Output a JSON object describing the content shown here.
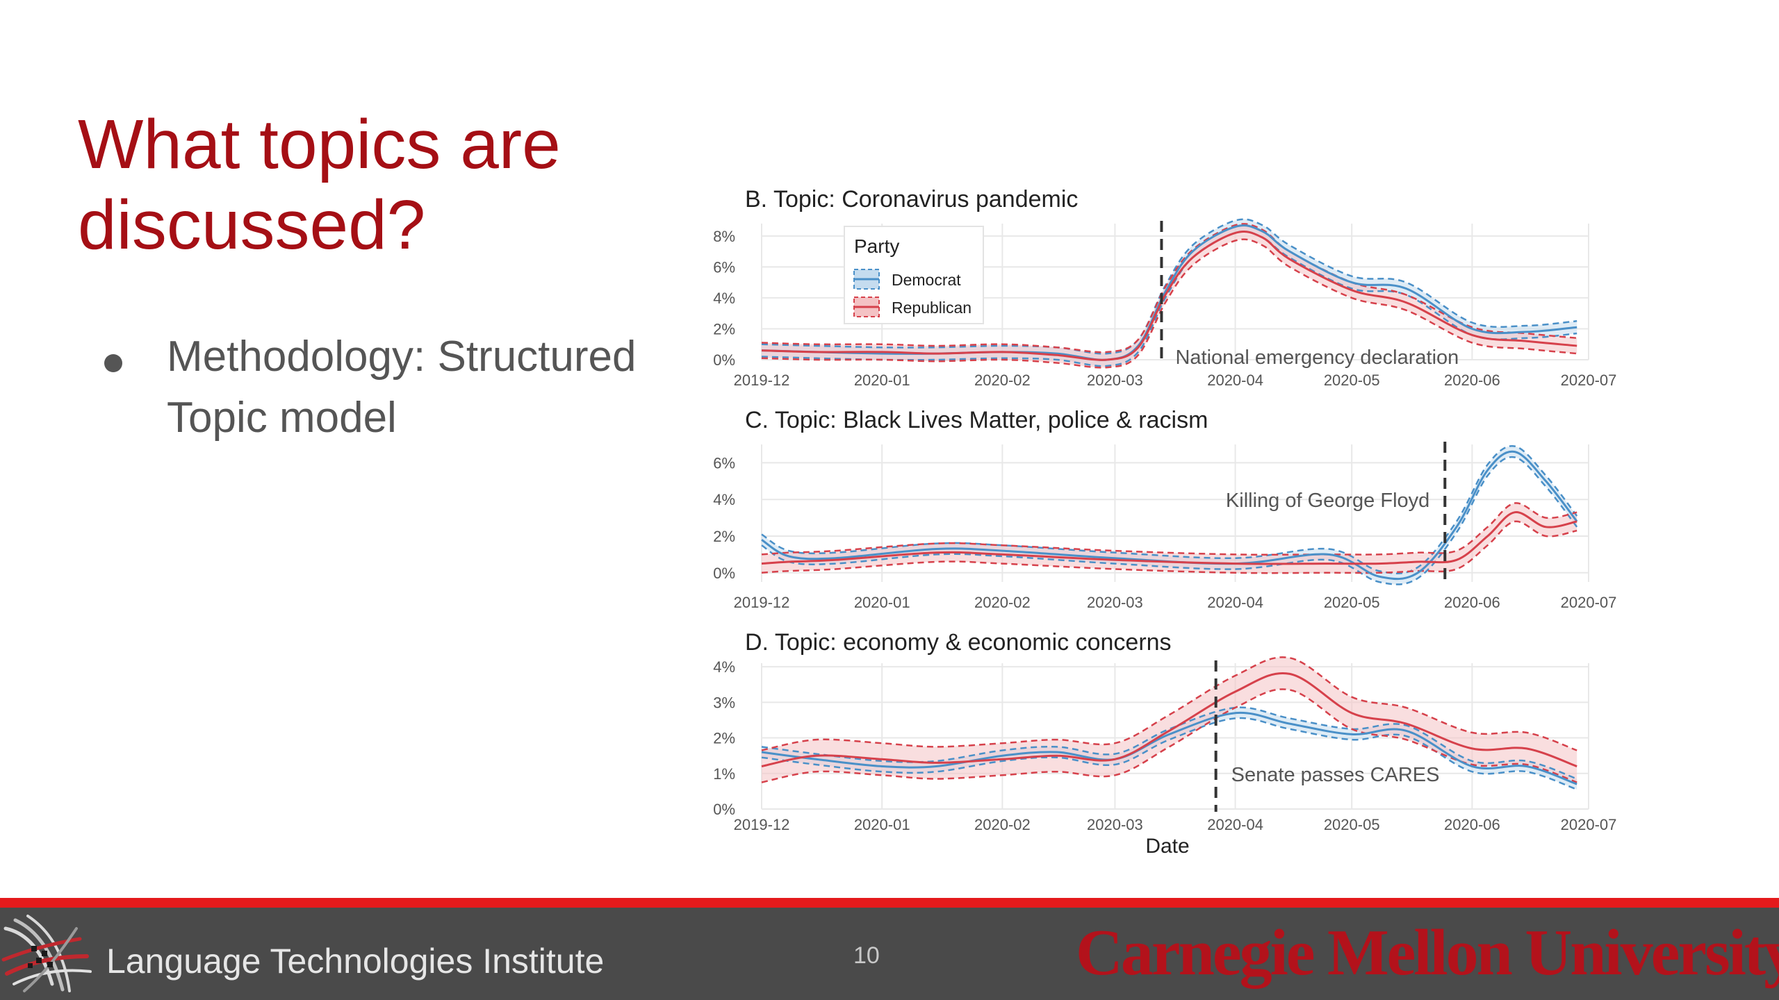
{
  "slide": {
    "title_line_1": "What topics are",
    "title_line_2": "discussed?",
    "bullet": "Methodology: Structured Topic model"
  },
  "footer": {
    "institute": "Language Technologies Institute",
    "page_number": "10",
    "university": "Carnegie Mellon University"
  },
  "colors": {
    "title": "#a50f15",
    "democrat": "#4a90c8",
    "democrat_band": "#c5dcef",
    "republican": "#d6414b",
    "republican_band": "#f4c2c4",
    "footer_stripe": "#e41a1c",
    "footer_bar": "#4a4a4a"
  },
  "chart_data": {
    "xlabel": "Date",
    "x_ticks": [
      "2019-12",
      "2020-01",
      "2020-02",
      "2020-03",
      "2020-04",
      "2020-05",
      "2020-06",
      "2020-07"
    ],
    "legend": {
      "title": "Party",
      "position": "top-left",
      "entries": [
        "Democrat",
        "Republican"
      ]
    },
    "panels": [
      {
        "type": "line",
        "title": "B. Topic: Coronavirus pandemic",
        "ylim": [
          0,
          8.8
        ],
        "y_ticks": [
          0,
          2,
          4,
          6,
          8
        ],
        "y_tick_labels": [
          "0%",
          "2%",
          "4%",
          "6%",
          "8%"
        ],
        "grid": true,
        "show_legend": true,
        "annotation": {
          "x": "2020-03-13",
          "text": "National emergency declaration"
        },
        "series": [
          {
            "name": "Democrat",
            "x": [
              "2019-12-01",
              "2019-12-15",
              "2020-01-01",
              "2020-01-15",
              "2020-02-01",
              "2020-02-15",
              "2020-02-28",
              "2020-03-07",
              "2020-03-14",
              "2020-03-21",
              "2020-04-01",
              "2020-04-08",
              "2020-04-15",
              "2020-05-01",
              "2020-05-15",
              "2020-06-01",
              "2020-06-15",
              "2020-06-28"
            ],
            "y": [
              0.6,
              0.5,
              0.4,
              0.4,
              0.5,
              0.4,
              0.0,
              0.9,
              4.4,
              7.0,
              8.6,
              8.3,
              7.0,
              5.0,
              4.6,
              2.0,
              1.8,
              2.1
            ],
            "band": 0.4
          },
          {
            "name": "Republican",
            "x": [
              "2019-12-01",
              "2019-12-15",
              "2020-01-01",
              "2020-01-15",
              "2020-02-01",
              "2020-02-15",
              "2020-02-28",
              "2020-03-07",
              "2020-03-14",
              "2020-03-21",
              "2020-04-01",
              "2020-04-08",
              "2020-04-15",
              "2020-05-01",
              "2020-05-15",
              "2020-06-01",
              "2020-06-15",
              "2020-06-28"
            ],
            "y": [
              0.6,
              0.5,
              0.5,
              0.4,
              0.5,
              0.3,
              0.0,
              0.8,
              4.2,
              6.6,
              8.2,
              7.9,
              6.5,
              4.5,
              3.7,
              1.6,
              1.2,
              0.9
            ],
            "band": 0.5
          }
        ]
      },
      {
        "type": "line",
        "title": "C. Topic: Black Lives Matter, police & racism",
        "ylim": [
          -0.5,
          7
        ],
        "y_ticks": [
          0,
          2,
          4,
          6
        ],
        "y_tick_labels": [
          "0%",
          "2%",
          "4%",
          "6%"
        ],
        "grid": true,
        "show_legend": false,
        "annotation": {
          "x": "2020-05-25",
          "text": "Killing of George Floyd"
        },
        "series": [
          {
            "name": "Democrat",
            "x": [
              "2019-12-01",
              "2019-12-08",
              "2019-12-20",
              "2020-01-15",
              "2020-02-01",
              "2020-03-01",
              "2020-04-01",
              "2020-04-25",
              "2020-05-08",
              "2020-05-18",
              "2020-05-28",
              "2020-06-05",
              "2020-06-12",
              "2020-06-20",
              "2020-06-28"
            ],
            "y": [
              1.8,
              0.9,
              0.8,
              1.3,
              1.2,
              0.8,
              0.5,
              1.0,
              -0.2,
              0.0,
              2.5,
              5.6,
              6.6,
              5.0,
              2.8
            ],
            "band": 0.3
          },
          {
            "name": "Republican",
            "x": [
              "2019-12-01",
              "2019-12-08",
              "2019-12-20",
              "2020-01-15",
              "2020-02-01",
              "2020-03-01",
              "2020-04-01",
              "2020-04-25",
              "2020-05-08",
              "2020-05-18",
              "2020-05-28",
              "2020-06-05",
              "2020-06-12",
              "2020-06-20",
              "2020-06-28"
            ],
            "y": [
              0.5,
              0.6,
              0.7,
              1.1,
              1.0,
              0.7,
              0.5,
              0.5,
              0.5,
              0.6,
              0.7,
              2.0,
              3.3,
              2.5,
              2.8
            ],
            "band": 0.5
          }
        ]
      },
      {
        "type": "line",
        "title": "D. Topic: economy & economic concerns",
        "ylim": [
          0,
          4.1
        ],
        "y_ticks": [
          0,
          1,
          2,
          3,
          4
        ],
        "y_tick_labels": [
          "0%",
          "1%",
          "2%",
          "3%",
          "4%"
        ],
        "grid": true,
        "show_legend": false,
        "annotation": {
          "x": "2020-03-27",
          "text": "Senate passes CARES"
        },
        "series": [
          {
            "name": "Democrat",
            "x": [
              "2019-12-01",
              "2019-12-15",
              "2020-01-01",
              "2020-01-15",
              "2020-02-01",
              "2020-02-15",
              "2020-03-01",
              "2020-03-15",
              "2020-04-01",
              "2020-04-15",
              "2020-05-01",
              "2020-05-15",
              "2020-06-01",
              "2020-06-15",
              "2020-06-28"
            ],
            "y": [
              1.6,
              1.4,
              1.2,
              1.2,
              1.5,
              1.6,
              1.4,
              2.1,
              2.7,
              2.4,
              2.1,
              2.2,
              1.2,
              1.2,
              0.7
            ],
            "band": 0.15
          },
          {
            "name": "Republican",
            "x": [
              "2019-12-01",
              "2019-12-15",
              "2020-01-01",
              "2020-01-15",
              "2020-02-01",
              "2020-02-15",
              "2020-03-01",
              "2020-03-15",
              "2020-04-01",
              "2020-04-15",
              "2020-05-01",
              "2020-05-15",
              "2020-06-01",
              "2020-06-15",
              "2020-06-28"
            ],
            "y": [
              1.2,
              1.5,
              1.4,
              1.3,
              1.4,
              1.5,
              1.4,
              2.2,
              3.3,
              3.8,
              2.7,
              2.4,
              1.7,
              1.7,
              1.2
            ],
            "band": 0.45
          }
        ]
      }
    ]
  }
}
